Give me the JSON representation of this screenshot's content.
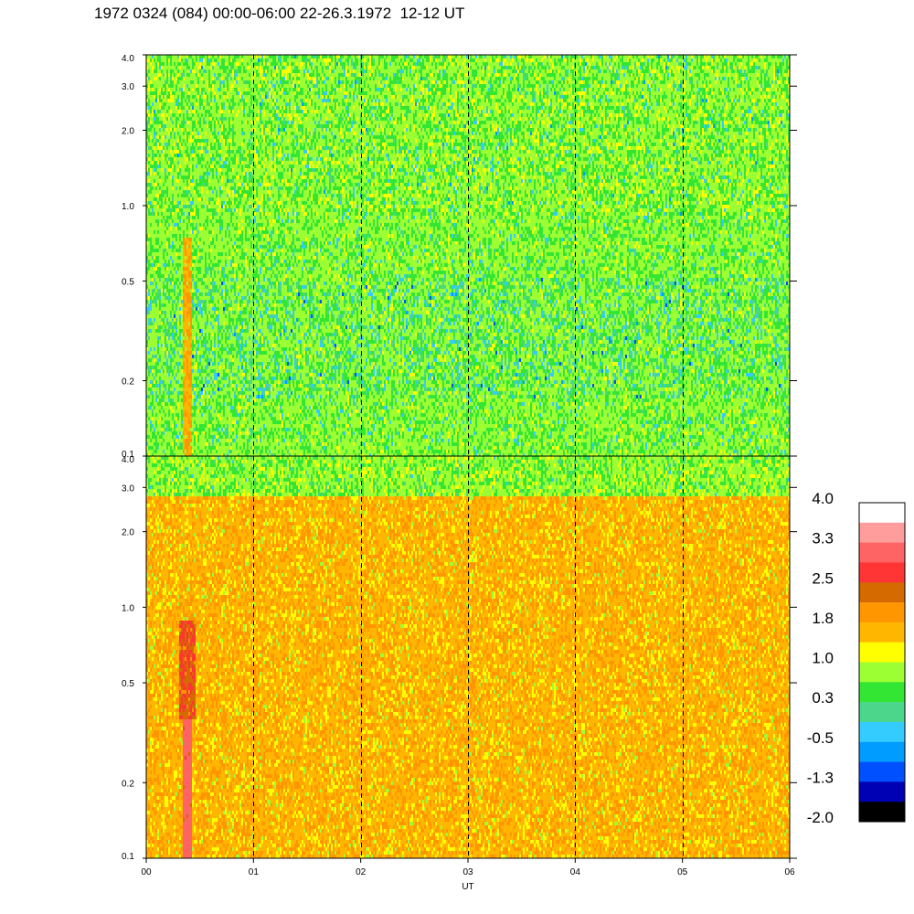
{
  "title": "1972 0324 (084) 00:00-06:00 22-26.3.1972  12-12 UT",
  "chart_data": [
    {
      "type": "heatmap",
      "panel": "top",
      "xlabel": "",
      "ylabel": "",
      "y_scale": "log",
      "ylim": [
        0.1,
        4.0
      ],
      "y_ticks": [
        "4.0",
        "3.0",
        "2.0",
        "1.0",
        "0.5",
        "0.2",
        "0.1"
      ],
      "y_tick_values": [
        4.0,
        3.0,
        2.0,
        1.0,
        0.5,
        0.2,
        0.1
      ],
      "xlim": [
        0,
        6
      ],
      "vertical_dashed_lines_at": [
        1,
        2,
        3,
        4,
        5
      ],
      "dominant_levels": "green / light green (about 0.0 to 0.8), cyan-blue patches near 2-3 and 0.3-0.4, yellow-orange streak near 00:20"
    },
    {
      "type": "heatmap",
      "panel": "bottom",
      "xlabel": "UT",
      "ylabel": "",
      "y_scale": "log",
      "ylim": [
        0.1,
        4.0
      ],
      "y_ticks": [
        "4.0",
        "3.0",
        "2.0",
        "1.0",
        "0.5",
        "0.2",
        "0.1"
      ],
      "y_tick_values": [
        4.0,
        3.0,
        2.0,
        1.0,
        0.5,
        0.2,
        0.1
      ],
      "xlim": [
        0,
        6
      ],
      "x_ticks": [
        "00",
        "01",
        "02",
        "03",
        "04",
        "05",
        "06"
      ],
      "x_tick_values": [
        0,
        1,
        2,
        3,
        4,
        5,
        6
      ],
      "vertical_dashed_lines_at": [
        1,
        2,
        3,
        4,
        5
      ],
      "dominant_levels": "yellow-orange (about 1.0 to 2.2), green near top edge, red streak near 00:20 below 0.3"
    }
  ],
  "colorbar": {
    "labels": [
      "4.0",
      "3.3",
      "2.5",
      "1.8",
      "1.0",
      "0.3",
      "-0.5",
      "-1.3",
      "-2.0"
    ],
    "colors": [
      "#ffffff",
      "#ff9c9c",
      "#ff6464",
      "#ff3434",
      "#d46a00",
      "#ff9600",
      "#ffb600",
      "#ffff00",
      "#9cff34",
      "#34e634",
      "#4cd68c",
      "#34ccff",
      "#009cff",
      "#0050ff",
      "#0000b4",
      "#000000"
    ]
  },
  "palette": {
    "level_colors": [
      "#000000",
      "#0000b4",
      "#0050ff",
      "#009cff",
      "#34ccff",
      "#4cd68c",
      "#34e634",
      "#9cff34",
      "#ffff00",
      "#ffb600",
      "#ff9600",
      "#d46a00",
      "#ff3434",
      "#ff6464",
      "#ff9c9c",
      "#ffffff"
    ]
  }
}
